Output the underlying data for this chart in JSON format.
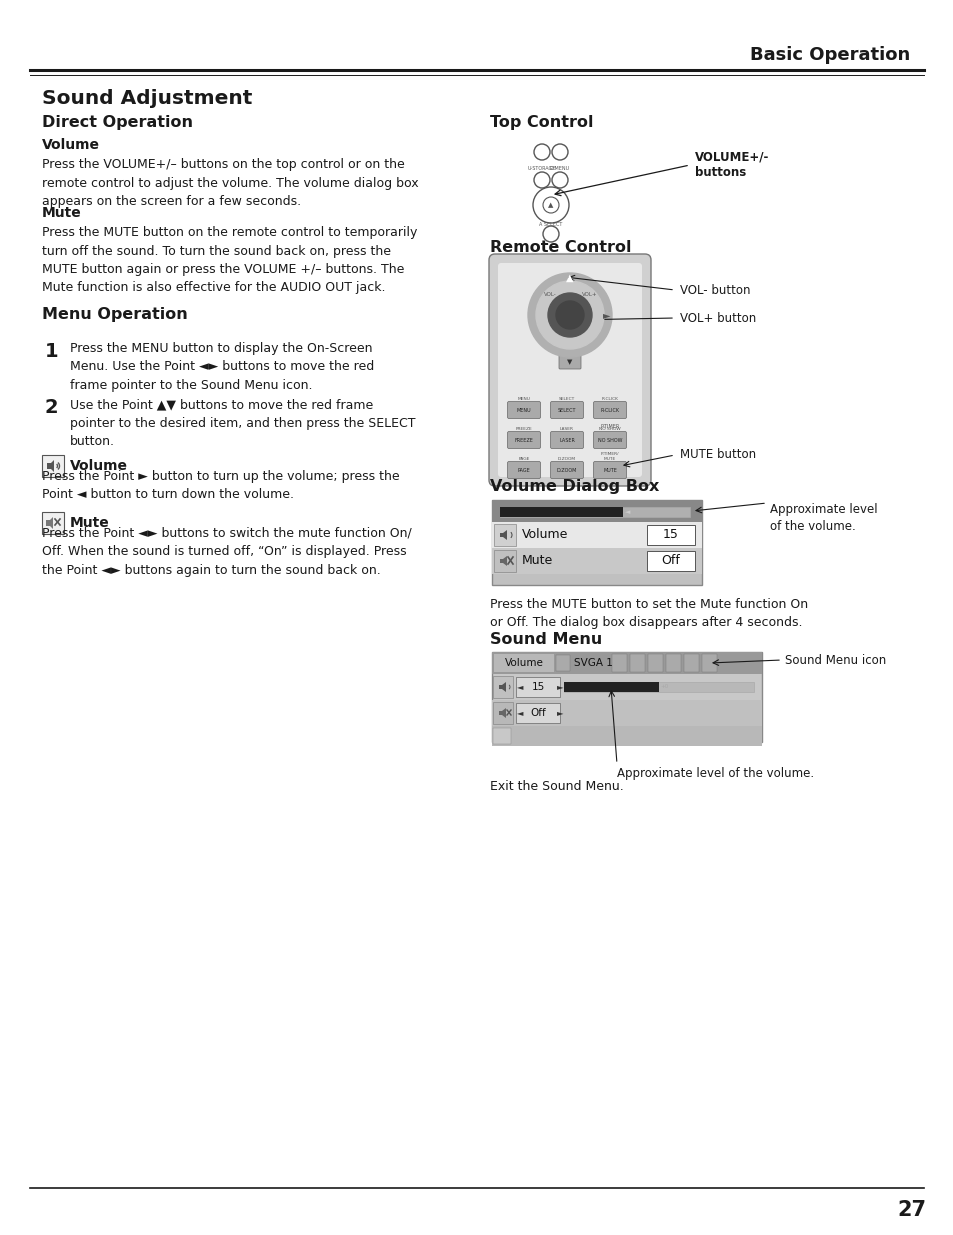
{
  "page_title": "Basic Operation",
  "page_number": "27",
  "section_title": "Sound Adjustment",
  "bg_color": "#ffffff",
  "text_color": "#1a1a1a",
  "left_col": {
    "subsection1_title": "Direct Operation",
    "volume_title": "Volume",
    "volume_text": "Press the VOLUME+/– buttons on the top control or on the\nremote control to adjust the volume. The volume dialog box\nappears on the screen for a few seconds.",
    "mute_title": "Mute",
    "mute_text": "Press the MUTE button on the remote control to temporarily\nturn off the sound. To turn the sound back on, press the\nMUTE button again or press the VOLUME +/– buttons. The\nMute function is also effective for the AUDIO OUT jack.",
    "subsection2_title": "Menu Operation",
    "step1_num": "1",
    "step1_text": "Press the MENU button to display the On-Screen\nMenu. Use the Point ◄► buttons to move the red\nframe pointer to the Sound Menu icon.",
    "step2_num": "2",
    "step2_text": "Use the Point ▲▼ buttons to move the red frame\npointer to the desired item, and then press the SELECT\nbutton.",
    "volume_icon_title": "Volume",
    "volume_icon_text": "Press the Point ► button to turn up the volume; press the\nPoint ◄ button to turn down the volume.",
    "mute_icon_title": "Mute",
    "mute_icon_text": "Press the Point ◄► buttons to switch the mute function On/\nOff. When the sound is turned off, “On” is displayed. Press\nthe Point ◄► buttons again to turn the sound back on."
  },
  "right_col": {
    "top_control_title": "Top Control",
    "top_control_label": "VOLUME+/-\nbuttons",
    "remote_control_title": "Remote Control",
    "vol_minus_label": "VOL- button",
    "vol_plus_label": "VOL+ button",
    "mute_button_label": "MUTE button",
    "volume_dialog_title": "Volume Dialog Box",
    "volume_dialog_note": "Approximate level\nof the volume.",
    "volume_dialog_note2": "Press the MUTE button to set the Mute function On\nor Off. The dialog box disappears after 4 seconds.",
    "sound_menu_title": "Sound Menu",
    "sound_menu_note1": "Sound Menu icon",
    "sound_menu_note2": "Approximate level of the volume.",
    "sound_menu_note3": "Exit the Sound Menu."
  }
}
